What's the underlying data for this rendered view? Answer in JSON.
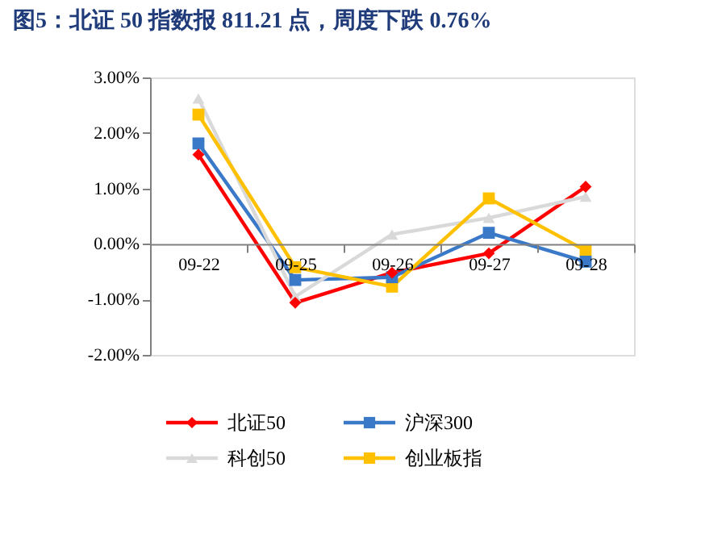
{
  "chart_data": {
    "type": "line",
    "title": "图5：北证 50 指数报 811.21 点，周度下跌 0.76%",
    "categories": [
      "09-22",
      "09-25",
      "09-26",
      "09-27",
      "09-28"
    ],
    "series": [
      {
        "name": "北证50",
        "color": "#ff0000",
        "marker": "diamond",
        "values": [
          1.61,
          -1.06,
          -0.52,
          -0.17,
          1.03
        ]
      },
      {
        "name": "沪深300",
        "color": "#3a78c8",
        "marker": "square",
        "values": [
          1.81,
          -0.65,
          -0.6,
          0.2,
          -0.32
        ]
      },
      {
        "name": "科创50",
        "color": "#d9d9d9",
        "marker": "triangle",
        "values": [
          2.62,
          -0.95,
          0.17,
          0.47,
          0.85
        ]
      },
      {
        "name": "创业板指",
        "color": "#ffc000",
        "marker": "square",
        "values": [
          2.33,
          -0.42,
          -0.77,
          0.82,
          -0.12
        ]
      }
    ],
    "ylim": [
      -2,
      3
    ],
    "yticks": [
      {
        "value": -2,
        "label": "-2.00%"
      },
      {
        "value": -1,
        "label": "-1.00%"
      },
      {
        "value": 0,
        "label": "0.00%"
      },
      {
        "value": 1,
        "label": "1.00%"
      },
      {
        "value": 2,
        "label": "2.00%"
      },
      {
        "value": 3,
        "label": "3.00%"
      }
    ],
    "grid": false,
    "legend": "bottom",
    "line_style": "solid"
  }
}
